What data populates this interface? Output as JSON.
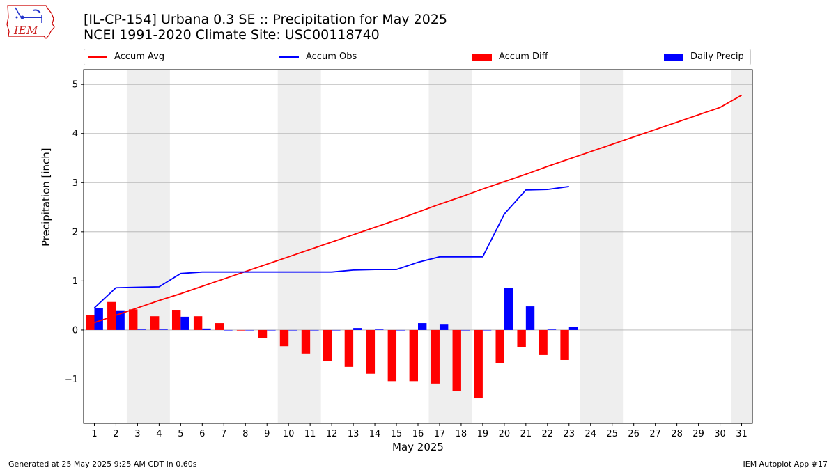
{
  "header": {
    "title_line1": "[IL-CP-154] Urbana 0.3 SE :: Precipitation for May 2025",
    "title_line2": "NCEI 1991-2020 Climate Site: USC00118740"
  },
  "logo": {
    "text": "IEM",
    "icon": "iem-iowa-logo-icon"
  },
  "footer": {
    "left": "Generated at 25 May 2025 9:25 AM CDT in 0.60s",
    "right": "IEM Autoplot App #17"
  },
  "colors": {
    "avg": "#ff0000",
    "obs": "#0000ff",
    "diff": "#ff0000",
    "daily": "#0000ff",
    "weekend": "#eeeeee",
    "grid": "#b0b0b0"
  },
  "chart_data": {
    "type": "bar",
    "xlabel": "May 2025",
    "ylabel": "Precipitation [inch]",
    "xlim": [
      0.5,
      31.5
    ],
    "ylim": [
      -1.9,
      5.3
    ],
    "yticks": [
      -1,
      0,
      1,
      2,
      3,
      4,
      5
    ],
    "ytick_labels": [
      "−1",
      "0",
      "1",
      "2",
      "3",
      "4",
      "5"
    ],
    "days": [
      1,
      2,
      3,
      4,
      5,
      6,
      7,
      8,
      9,
      10,
      11,
      12,
      13,
      14,
      15,
      16,
      17,
      18,
      19,
      20,
      21,
      22,
      23,
      24,
      25,
      26,
      27,
      28,
      29,
      30,
      31
    ],
    "day_labels": [
      "1",
      "2",
      "3",
      "4",
      "5",
      "6",
      "7",
      "8",
      "9",
      "10",
      "11",
      "12",
      "13",
      "14",
      "15",
      "16",
      "17",
      "18",
      "19",
      "20",
      "21",
      "22",
      "23",
      "24",
      "25",
      "26",
      "27",
      "28",
      "29",
      "30",
      "31"
    ],
    "weekend_ranges": [
      [
        2.5,
        4.5
      ],
      [
        9.5,
        11.5
      ],
      [
        16.5,
        18.5
      ],
      [
        23.5,
        25.5
      ],
      [
        30.5,
        31.5
      ]
    ],
    "grid": true,
    "legend": {
      "placement": "top",
      "entries": [
        "Accum Avg",
        "Accum Obs",
        "Accum Diff",
        "Daily Precip"
      ]
    },
    "series": [
      {
        "name": "Accum Avg",
        "kind": "line",
        "values": [
          0.15,
          0.3,
          0.45,
          0.6,
          0.74,
          0.89,
          1.04,
          1.19,
          1.34,
          1.49,
          1.64,
          1.79,
          1.94,
          2.09,
          2.24,
          2.4,
          2.56,
          2.71,
          2.87,
          3.02,
          3.17,
          3.33,
          3.48,
          3.63,
          3.78,
          3.93,
          4.08,
          4.23,
          4.38,
          4.53,
          4.78
        ]
      },
      {
        "name": "Accum Obs",
        "kind": "line",
        "values": [
          0.45,
          0.86,
          0.87,
          0.88,
          1.15,
          1.18,
          1.18,
          1.18,
          1.18,
          1.18,
          1.18,
          1.18,
          1.22,
          1.23,
          1.23,
          1.38,
          1.49,
          1.49,
          1.49,
          2.36,
          2.85,
          2.86,
          2.92
        ]
      },
      {
        "name": "Accum Diff",
        "kind": "bar",
        "values": [
          0.31,
          0.57,
          0.42,
          0.28,
          0.41,
          0.28,
          0.14,
          -0.01,
          -0.16,
          -0.33,
          -0.48,
          -0.63,
          -0.75,
          -0.89,
          -1.04,
          -1.04,
          -1.09,
          -1.24,
          -1.39,
          -0.68,
          -0.35,
          -0.51,
          -0.61
        ]
      },
      {
        "name": "Daily Precip",
        "kind": "bar",
        "values": [
          0.45,
          0.4,
          0.01,
          0.01,
          0.27,
          0.03,
          0.0,
          0.0,
          0.0,
          0.0,
          0.0,
          0.0,
          0.04,
          0.01,
          0.0,
          0.14,
          0.11,
          0.0,
          0.0,
          0.86,
          0.48,
          0.01,
          0.06
        ]
      }
    ]
  }
}
